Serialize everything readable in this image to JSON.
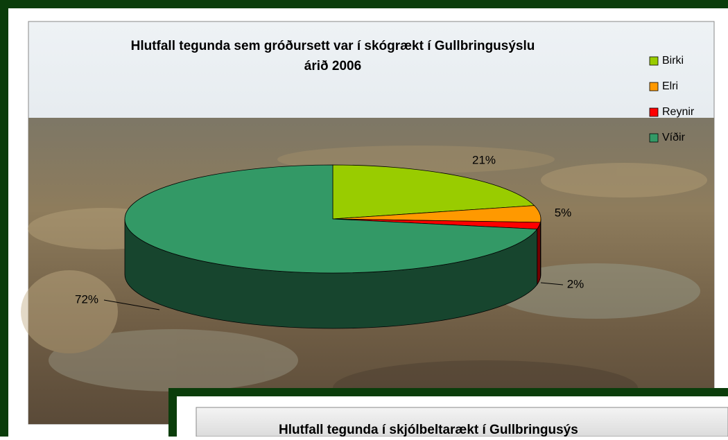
{
  "chart_data": [
    {
      "type": "pie",
      "title": "Hlutfall tegunda sem gróðursett var í skógrækt í Gullbringusýslu árið 2006",
      "categories": [
        "Birki",
        "Elri",
        "Reynir",
        "Víðir"
      ],
      "values": [
        21,
        5,
        2,
        72
      ],
      "value_labels": [
        "21%",
        "5%",
        "2%",
        "72%"
      ],
      "colors": [
        "#99cc00",
        "#ff9900",
        "#ff0000",
        "#339966"
      ],
      "legend": "right"
    },
    {
      "type": "pie",
      "title": "Hlutfall tegunda í skjólbeltarækt í Gullbringusýs"
    }
  ]
}
